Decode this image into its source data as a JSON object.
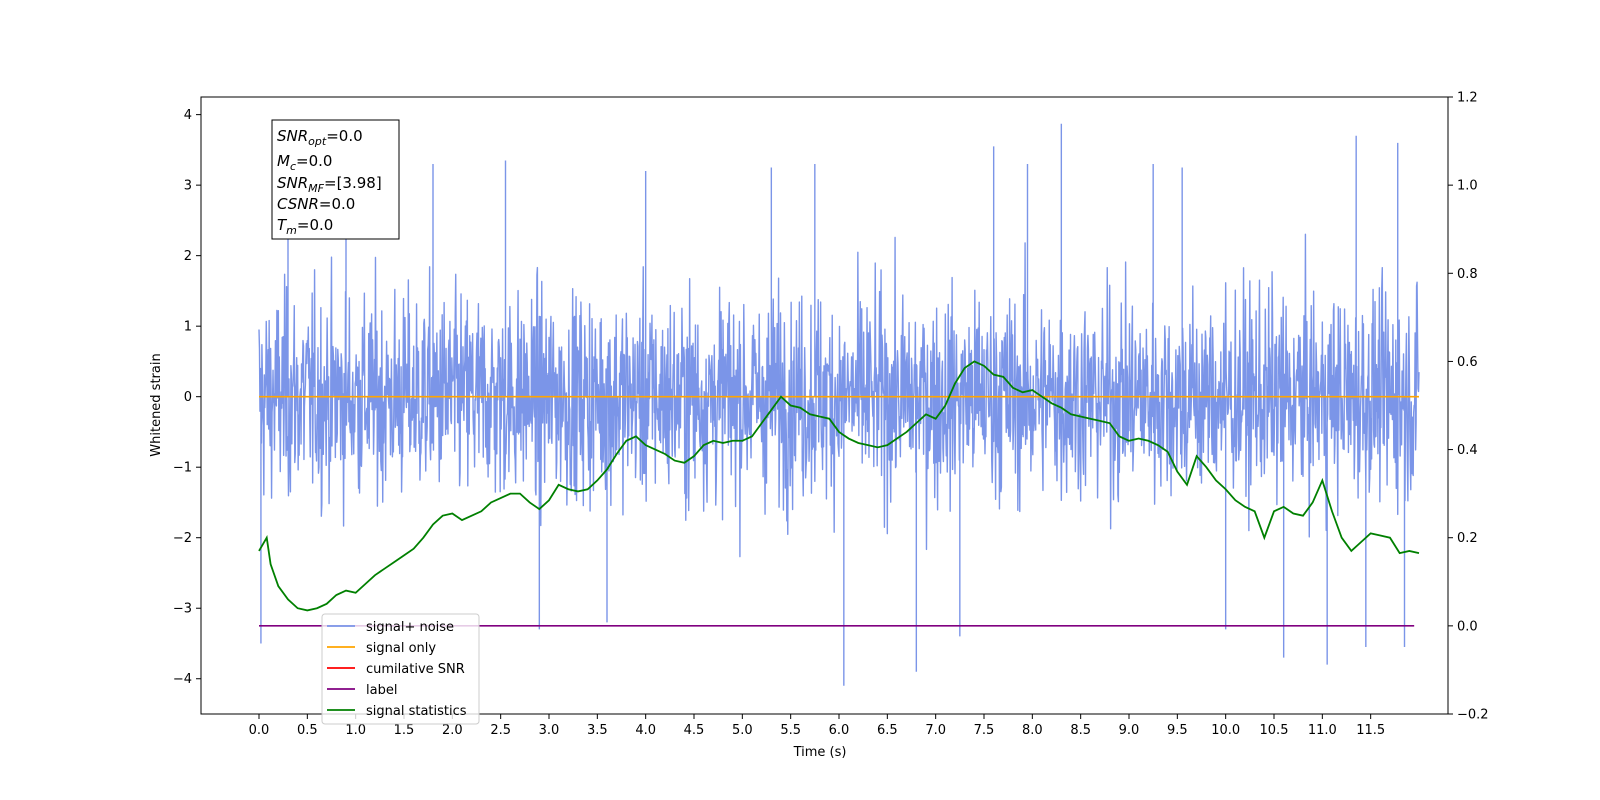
{
  "chart_data": {
    "type": "line",
    "xlabel": "Time (s)",
    "ylabel": "Whitened strain",
    "xlim": [
      -0.6,
      12.3
    ],
    "ylim": [
      -4.5,
      4.25
    ],
    "y2lim": [
      -0.2,
      1.2
    ],
    "x_ticks": [
      "0.0",
      "0.5",
      "1.0",
      "1.5",
      "2.0",
      "2.5",
      "3.0",
      "3.5",
      "4.0",
      "4.5",
      "5.0",
      "5.5",
      "6.0",
      "6.5",
      "7.0",
      "7.5",
      "8.0",
      "8.5",
      "9.0",
      "9.5",
      "10.0",
      "10.5",
      "11.0",
      "11.5"
    ],
    "y_ticks": [
      "4",
      "3",
      "2",
      "1",
      "0",
      "−1",
      "−2",
      "−3",
      "−4"
    ],
    "y2_ticks": [
      "1.2",
      "1.0",
      "0.8",
      "0.6",
      "0.4",
      "0.2",
      "0.0",
      "−0.2"
    ],
    "grid": false,
    "legend_location": "lower-left",
    "info_box": [
      {
        "base": "SNR",
        "sub": "opt",
        "value": "=0.0"
      },
      {
        "base": "M",
        "sub": "c",
        "value": "=0.0"
      },
      {
        "base": "SNR",
        "sub": "MF",
        "value": "=[3.98]"
      },
      {
        "base": "CSNR",
        "sub": "",
        "value": "=0.0"
      },
      {
        "base": "T",
        "sub": "m",
        "value": "=0.0"
      }
    ],
    "series": [
      {
        "name": "signal+ noise",
        "color": "#7b95e8",
        "axis": "left",
        "note": "dense noise band between about -2.5 and 2.3 with spikes up to 3.87 and down to -4.1",
        "spikes": [
          [
            0.02,
            -3.5
          ],
          [
            0.3,
            3.05
          ],
          [
            0.9,
            3.2
          ],
          [
            1.8,
            3.3
          ],
          [
            2.55,
            3.35
          ],
          [
            2.9,
            -3.3
          ],
          [
            3.6,
            -3.2
          ],
          [
            4.0,
            3.2
          ],
          [
            5.3,
            3.25
          ],
          [
            5.75,
            3.3
          ],
          [
            6.05,
            -4.1
          ],
          [
            6.8,
            -3.9
          ],
          [
            7.25,
            -3.4
          ],
          [
            7.6,
            3.55
          ],
          [
            7.95,
            3.3
          ],
          [
            8.3,
            3.87
          ],
          [
            9.25,
            3.3
          ],
          [
            9.55,
            3.25
          ],
          [
            10.0,
            -3.3
          ],
          [
            10.6,
            -3.7
          ],
          [
            11.05,
            -3.8
          ],
          [
            11.35,
            3.7
          ],
          [
            11.45,
            -3.55
          ],
          [
            11.78,
            3.6
          ],
          [
            11.85,
            -3.55
          ]
        ]
      },
      {
        "name": "signal only",
        "color": "#ffa500",
        "axis": "left",
        "x": [
          0.0,
          12.0
        ],
        "y": [
          0.0,
          0.0
        ]
      },
      {
        "name": "cumilative SNR",
        "color": "#ff0000",
        "axis": "right",
        "x": [],
        "y": []
      },
      {
        "name": "label",
        "color": "#800080",
        "axis": "right",
        "x": [
          0.0,
          11.95
        ],
        "y": [
          0.0,
          0.0
        ]
      },
      {
        "name": "signal statistics",
        "color": "#008000",
        "axis": "right",
        "x": [
          0.0,
          0.08,
          0.12,
          0.2,
          0.3,
          0.4,
          0.5,
          0.6,
          0.7,
          0.8,
          0.9,
          1.0,
          1.1,
          1.2,
          1.3,
          1.4,
          1.5,
          1.6,
          1.7,
          1.8,
          1.9,
          2.0,
          2.1,
          2.2,
          2.3,
          2.4,
          2.5,
          2.6,
          2.7,
          2.8,
          2.9,
          3.0,
          3.1,
          3.2,
          3.3,
          3.4,
          3.5,
          3.6,
          3.7,
          3.8,
          3.9,
          4.0,
          4.1,
          4.2,
          4.3,
          4.4,
          4.5,
          4.6,
          4.7,
          4.8,
          4.9,
          5.0,
          5.1,
          5.2,
          5.3,
          5.4,
          5.5,
          5.6,
          5.7,
          5.8,
          5.9,
          6.0,
          6.1,
          6.2,
          6.3,
          6.4,
          6.5,
          6.6,
          6.7,
          6.8,
          6.9,
          7.0,
          7.1,
          7.2,
          7.3,
          7.4,
          7.5,
          7.6,
          7.7,
          7.8,
          7.9,
          8.0,
          8.1,
          8.2,
          8.3,
          8.4,
          8.5,
          8.6,
          8.7,
          8.8,
          8.9,
          9.0,
          9.1,
          9.2,
          9.3,
          9.4,
          9.5,
          9.6,
          9.7,
          9.8,
          9.9,
          10.0,
          10.1,
          10.2,
          10.3,
          10.4,
          10.5,
          10.6,
          10.7,
          10.8,
          10.9,
          11.0,
          11.1,
          11.2,
          11.3,
          11.4,
          11.5,
          11.6,
          11.7,
          11.8,
          11.9,
          12.0
        ],
        "y": [
          0.17,
          0.2,
          0.14,
          0.09,
          0.06,
          0.04,
          0.035,
          0.04,
          0.05,
          0.07,
          0.08,
          0.075,
          0.095,
          0.115,
          0.13,
          0.145,
          0.16,
          0.175,
          0.2,
          0.23,
          0.25,
          0.255,
          0.24,
          0.25,
          0.26,
          0.28,
          0.29,
          0.3,
          0.3,
          0.28,
          0.265,
          0.285,
          0.32,
          0.31,
          0.305,
          0.31,
          0.33,
          0.355,
          0.39,
          0.42,
          0.43,
          0.41,
          0.4,
          0.39,
          0.375,
          0.37,
          0.385,
          0.41,
          0.42,
          0.415,
          0.42,
          0.42,
          0.43,
          0.46,
          0.49,
          0.52,
          0.5,
          0.495,
          0.48,
          0.475,
          0.47,
          0.44,
          0.425,
          0.415,
          0.41,
          0.405,
          0.41,
          0.425,
          0.44,
          0.46,
          0.48,
          0.47,
          0.5,
          0.55,
          0.585,
          0.6,
          0.59,
          0.57,
          0.565,
          0.54,
          0.53,
          0.535,
          0.52,
          0.505,
          0.495,
          0.48,
          0.475,
          0.47,
          0.465,
          0.46,
          0.43,
          0.42,
          0.425,
          0.42,
          0.41,
          0.395,
          0.35,
          0.32,
          0.385,
          0.36,
          0.33,
          0.31,
          0.285,
          0.27,
          0.26,
          0.2,
          0.26,
          0.27,
          0.255,
          0.25,
          0.28,
          0.33,
          0.26,
          0.2,
          0.17,
          0.19,
          0.21,
          0.205,
          0.2,
          0.165,
          0.17,
          0.165
        ]
      }
    ]
  }
}
